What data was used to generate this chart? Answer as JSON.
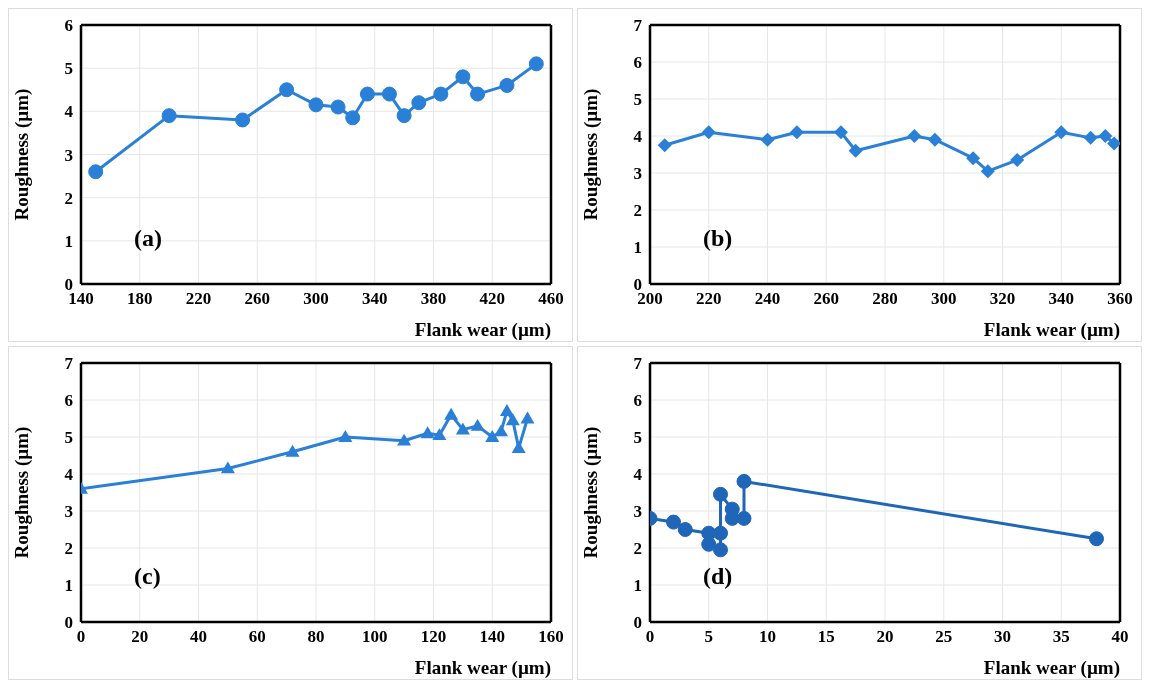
{
  "chart_data": [
    {
      "type": "line",
      "xlabel": "Flank wear (µm)",
      "ylabel": "Roughness (µm)",
      "annotations": [
        "(a)"
      ],
      "x": [
        150,
        200,
        250,
        280,
        300,
        315,
        325,
        335,
        350,
        360,
        370,
        385,
        400,
        410,
        430,
        450
      ],
      "series": [
        {
          "color": "#2a80d6",
          "values": [
            2.6,
            3.9,
            3.8,
            4.5,
            4.15,
            4.1,
            3.85,
            4.4,
            4.4,
            3.9,
            4.2,
            4.4,
            4.8,
            4.4,
            4.6,
            5.1
          ]
        }
      ],
      "xlim": [
        140,
        460
      ],
      "xticks": [
        140,
        180,
        220,
        260,
        300,
        340,
        380,
        420,
        460
      ],
      "ylim": [
        0,
        6
      ],
      "yticks": [
        0,
        1,
        2,
        3,
        4,
        5,
        6
      ],
      "grid": true,
      "marker": "circle",
      "legend": false
    },
    {
      "type": "line",
      "xlabel": "Flank wear (µm)",
      "ylabel": "Roughness (µm)",
      "annotations": [
        "(b)"
      ],
      "x": [
        205,
        220,
        240,
        250,
        265,
        270,
        290,
        297,
        310,
        315,
        325,
        340,
        350,
        355,
        358
      ],
      "series": [
        {
          "color": "#2a80d6",
          "values": [
            3.75,
            4.1,
            3.9,
            4.1,
            4.1,
            3.6,
            4.0,
            3.9,
            3.4,
            3.05,
            3.35,
            4.1,
            3.95,
            4.0,
            3.8
          ]
        }
      ],
      "xlim": [
        200,
        360
      ],
      "xticks": [
        200,
        220,
        240,
        260,
        280,
        300,
        320,
        340,
        360
      ],
      "ylim": [
        0,
        7
      ],
      "yticks": [
        0,
        1,
        2,
        3,
        4,
        5,
        6,
        7
      ],
      "grid": true,
      "marker": "diamond",
      "legend": false
    },
    {
      "type": "line",
      "xlabel": "Flank wear (µm)",
      "ylabel": "Roughness (µm)",
      "annotations": [
        "(c)"
      ],
      "x": [
        0,
        50,
        72,
        90,
        110,
        118,
        122,
        126,
        130,
        135,
        140,
        143,
        145,
        147,
        149,
        152
      ],
      "series": [
        {
          "color": "#2a80d6",
          "values": [
            3.6,
            4.15,
            4.6,
            5.0,
            4.9,
            5.1,
            5.05,
            5.6,
            5.2,
            5.3,
            5.0,
            5.15,
            5.7,
            5.45,
            4.7,
            5.5
          ]
        }
      ],
      "xlim": [
        0,
        160
      ],
      "xticks": [
        0,
        20,
        40,
        60,
        80,
        100,
        120,
        140,
        160
      ],
      "ylim": [
        0,
        7
      ],
      "yticks": [
        0,
        1,
        2,
        3,
        4,
        5,
        6,
        7
      ],
      "grid": true,
      "marker": "triangle",
      "legend": false
    },
    {
      "type": "line",
      "xlabel": "Flank wear (µm)",
      "ylabel": "Roughness (µm)",
      "annotations": [
        "(d)"
      ],
      "x": [
        0,
        2,
        3,
        5,
        5,
        6,
        6,
        6,
        7,
        7,
        8,
        8,
        38
      ],
      "series": [
        {
          "color": "#1f66b8",
          "values": [
            2.8,
            2.7,
            2.5,
            2.4,
            2.1,
            1.95,
            2.4,
            3.45,
            3.05,
            2.8,
            2.8,
            3.8,
            2.25
          ]
        }
      ],
      "xlim": [
        0,
        40
      ],
      "xticks": [
        0,
        5,
        10,
        15,
        20,
        25,
        30,
        35,
        40
      ],
      "ylim": [
        0,
        7
      ],
      "yticks": [
        0,
        1,
        2,
        3,
        4,
        5,
        6,
        7
      ],
      "grid": true,
      "marker": "circle",
      "legend": false
    }
  ]
}
